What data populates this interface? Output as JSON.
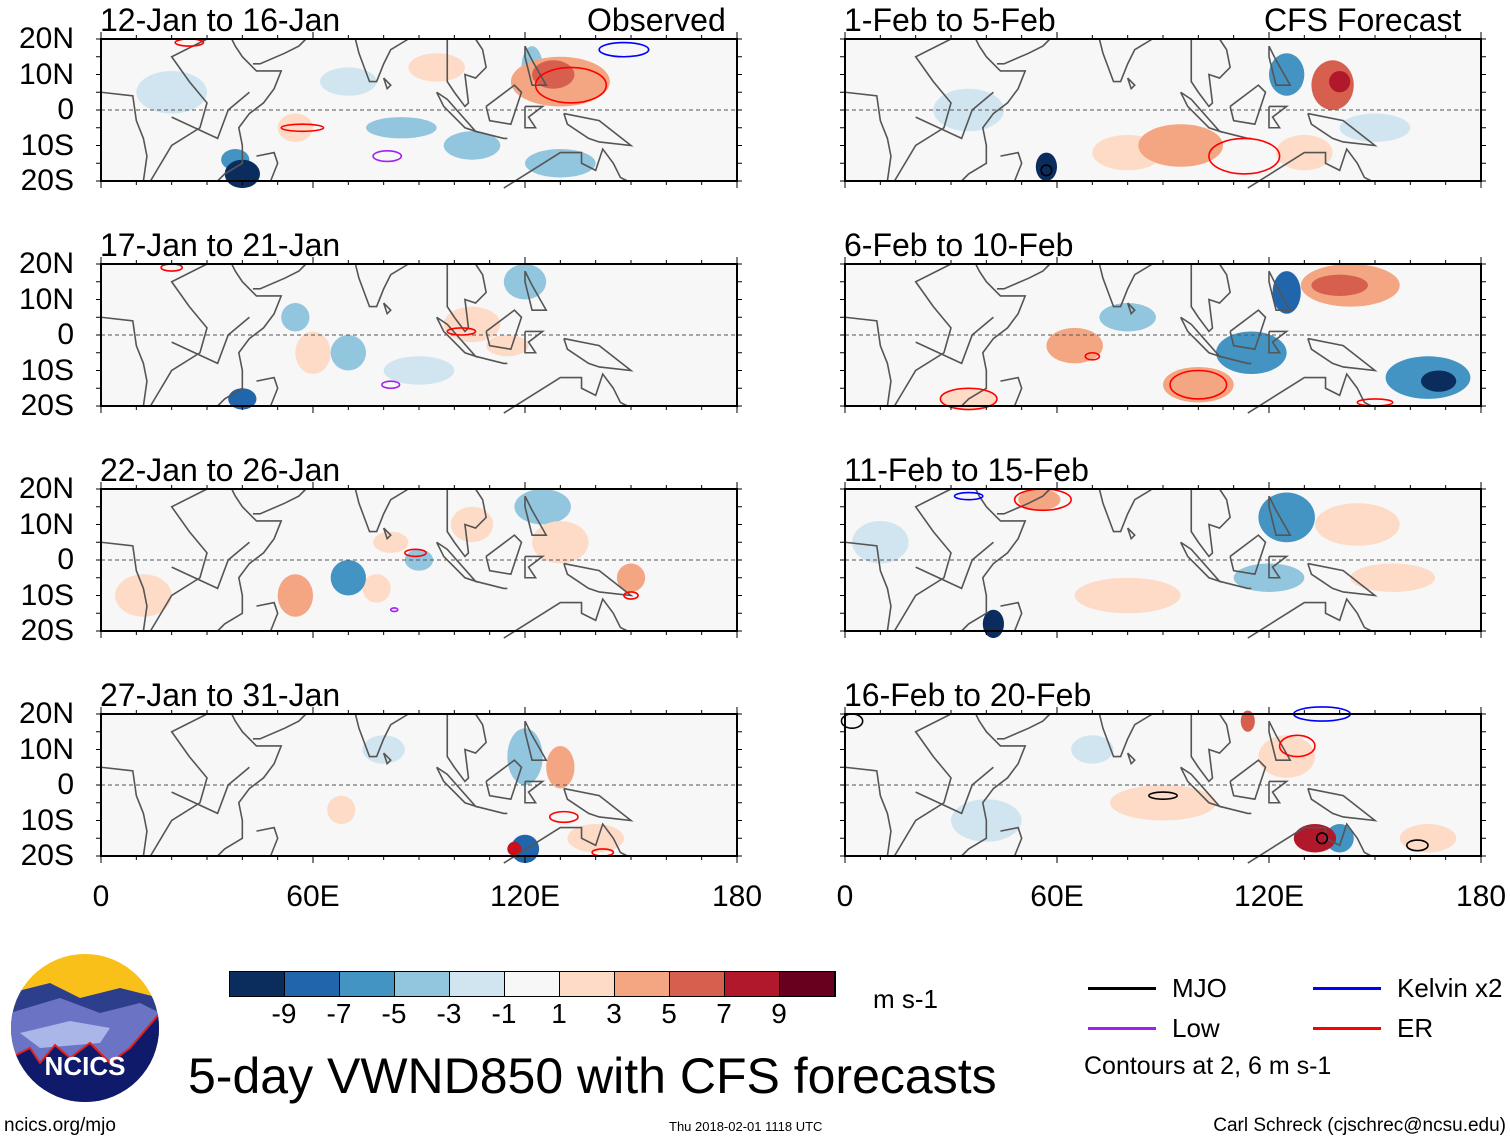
{
  "title": "5-day VWND850 with CFS forecasts",
  "site": "ncics.org/mjo",
  "timestamp": "Thu 2018-02-01 1118 UTC",
  "author": "Carl Schreck (cjschrec@ncsu.edu)",
  "logo_text": "NCICS",
  "column_labels": {
    "observed": "Observed",
    "forecast": "CFS Forecast"
  },
  "units": "m s-1",
  "contour_note": "Contours at 2, 6 m s-1",
  "legend": [
    {
      "label": "MJO",
      "color": "#000000"
    },
    {
      "label": "Kelvin x2",
      "color": "#0000ff"
    },
    {
      "label": "Low",
      "color": "#a020f0"
    },
    {
      "label": "ER",
      "color": "#ff0000"
    }
  ],
  "colorbar": {
    "ticks": [
      "-9",
      "-7",
      "-5",
      "-3",
      "-1",
      "1",
      "3",
      "5",
      "7",
      "9"
    ],
    "colors": [
      "#0b2d5e",
      "#2166ac",
      "#4393c3",
      "#92c5de",
      "#d1e5f0",
      "#f7f7f7",
      "#fddbc7",
      "#f4a582",
      "#d6604d",
      "#b2182b",
      "#67001f"
    ]
  },
  "lat_labels": [
    "20N",
    "10N",
    "0",
    "10S",
    "20S"
  ],
  "lon_labels": [
    "0",
    "60E",
    "120E",
    "180"
  ],
  "chart_data": {
    "type": "heatmap",
    "variable": "850-hPa meridional wind anomaly (m s-1)",
    "xlim": [
      0,
      180
    ],
    "ylim": [
      -20,
      20
    ],
    "panels": [
      {
        "title": "12-Jan to 16-Jan",
        "kind": "observed",
        "anoms": [
          [
            130,
            8,
            14,
            7,
            5
          ],
          [
            128,
            10,
            6,
            4,
            7
          ],
          [
            95,
            12,
            8,
            4,
            3
          ],
          [
            122,
            12,
            3,
            6,
            -3
          ],
          [
            40,
            -18,
            5,
            4,
            -9
          ],
          [
            38,
            -14,
            4,
            3,
            -5
          ],
          [
            55,
            -5,
            5,
            4,
            3
          ],
          [
            85,
            -5,
            10,
            3,
            -3
          ],
          [
            70,
            8,
            8,
            4,
            -1
          ],
          [
            160,
            -5,
            15,
            6,
            1
          ],
          [
            20,
            5,
            10,
            6,
            -1
          ],
          [
            105,
            -10,
            8,
            4,
            -3
          ],
          [
            130,
            -15,
            10,
            4,
            -3
          ],
          [
            150,
            5,
            12,
            6,
            1
          ]
        ],
        "contours": [
          [
            133,
            7,
            10,
            5,
            "ER"
          ],
          [
            57,
            -5,
            6,
            1,
            "ER"
          ],
          [
            81,
            -13,
            4,
            1.5,
            "Low"
          ],
          [
            148,
            17,
            7,
            2,
            "Kelvin"
          ],
          [
            25,
            19,
            4,
            1,
            "ER"
          ]
        ]
      },
      {
        "title": "17-Jan to 21-Jan",
        "kind": "observed",
        "anoms": [
          [
            105,
            3,
            8,
            5,
            3
          ],
          [
            40,
            -18,
            4,
            3,
            -7
          ],
          [
            60,
            -5,
            5,
            6,
            3
          ],
          [
            55,
            5,
            4,
            4,
            -3
          ],
          [
            70,
            -5,
            5,
            5,
            -3
          ],
          [
            120,
            15,
            6,
            5,
            -3
          ],
          [
            115,
            -3,
            6,
            3,
            3
          ],
          [
            150,
            0,
            15,
            8,
            1
          ],
          [
            90,
            -10,
            10,
            4,
            -1
          ],
          [
            20,
            0,
            10,
            8,
            1
          ]
        ],
        "contours": [
          [
            102,
            1,
            4,
            1,
            "ER"
          ],
          [
            82,
            -14,
            2.5,
            1,
            "Low"
          ],
          [
            20,
            19,
            3,
            1,
            "ER"
          ]
        ]
      },
      {
        "title": "22-Jan to 26-Jan",
        "kind": "observed",
        "anoms": [
          [
            82,
            5,
            5,
            3,
            3
          ],
          [
            55,
            -10,
            5,
            6,
            5
          ],
          [
            70,
            -5,
            5,
            5,
            -5
          ],
          [
            78,
            -8,
            4,
            4,
            3
          ],
          [
            90,
            0,
            4,
            3,
            -3
          ],
          [
            125,
            15,
            8,
            5,
            -3
          ],
          [
            105,
            10,
            6,
            5,
            3
          ],
          [
            130,
            5,
            8,
            6,
            3
          ],
          [
            150,
            -5,
            4,
            4,
            5
          ],
          [
            30,
            15,
            10,
            5,
            1
          ],
          [
            160,
            10,
            15,
            6,
            1
          ],
          [
            12,
            -10,
            8,
            6,
            3
          ]
        ],
        "contours": [
          [
            89,
            2,
            3,
            1,
            "ER"
          ],
          [
            83,
            -14,
            1,
            0.5,
            "Low"
          ],
          [
            150,
            -10,
            2,
            1,
            "ER"
          ]
        ]
      },
      {
        "title": "27-Jan to 31-Jan",
        "kind": "observed",
        "anoms": [
          [
            120,
            -18,
            4,
            4,
            -7
          ],
          [
            117,
            -18,
            2,
            2,
            9
          ],
          [
            130,
            5,
            4,
            6,
            5
          ],
          [
            120,
            8,
            5,
            8,
            -3
          ],
          [
            68,
            -7,
            4,
            4,
            3
          ],
          [
            80,
            10,
            6,
            4,
            -1
          ],
          [
            150,
            -5,
            20,
            5,
            1
          ],
          [
            60,
            15,
            8,
            4,
            1
          ],
          [
            140,
            -15,
            8,
            4,
            3
          ],
          [
            30,
            -5,
            10,
            8,
            1
          ]
        ],
        "contours": [
          [
            131,
            -9,
            4,
            1.5,
            "ER"
          ],
          [
            142,
            -19,
            3,
            1,
            "ER"
          ],
          [
            117,
            -18,
            1,
            1,
            "ER"
          ]
        ]
      },
      {
        "title": "1-Feb to 5-Feb",
        "kind": "forecast",
        "anoms": [
          [
            138,
            7,
            6,
            7,
            7
          ],
          [
            140,
            8,
            3,
            3,
            9
          ],
          [
            125,
            10,
            5,
            6,
            -5
          ],
          [
            57,
            -16,
            3,
            4,
            -9
          ],
          [
            80,
            -12,
            10,
            5,
            3
          ],
          [
            95,
            -10,
            12,
            6,
            5
          ],
          [
            130,
            -12,
            8,
            5,
            3
          ],
          [
            150,
            -5,
            10,
            4,
            -1
          ],
          [
            35,
            0,
            10,
            6,
            -1
          ],
          [
            85,
            10,
            10,
            4,
            1
          ],
          [
            15,
            -10,
            8,
            5,
            1
          ]
        ],
        "contours": [
          [
            113,
            -13,
            10,
            5,
            "ER"
          ],
          [
            57,
            -17,
            1.5,
            1.5,
            "MJO"
          ]
        ]
      },
      {
        "title": "6-Feb to 10-Feb",
        "kind": "forecast",
        "anoms": [
          [
            143,
            14,
            14,
            6,
            5
          ],
          [
            140,
            14,
            8,
            3,
            7
          ],
          [
            125,
            12,
            4,
            6,
            -7
          ],
          [
            115,
            -5,
            10,
            6,
            -5
          ],
          [
            165,
            -12,
            12,
            6,
            -5
          ],
          [
            168,
            -13,
            5,
            3,
            -9
          ],
          [
            65,
            -3,
            8,
            5,
            5
          ],
          [
            100,
            -14,
            10,
            5,
            5
          ],
          [
            35,
            -18,
            8,
            3,
            3
          ],
          [
            80,
            5,
            8,
            4,
            -3
          ],
          [
            160,
            5,
            10,
            5,
            1
          ]
        ],
        "contours": [
          [
            100,
            -14,
            8,
            4,
            "ER"
          ],
          [
            35,
            -18,
            8,
            3,
            "ER"
          ],
          [
            70,
            -6,
            2,
            1,
            "ER"
          ],
          [
            150,
            -19,
            5,
            1,
            "ER"
          ]
        ]
      },
      {
        "title": "11-Feb to 15-Feb",
        "kind": "forecast",
        "anoms": [
          [
            125,
            12,
            8,
            7,
            -5
          ],
          [
            120,
            -5,
            10,
            4,
            -3
          ],
          [
            55,
            17,
            6,
            3,
            5
          ],
          [
            42,
            -18,
            3,
            4,
            -9
          ],
          [
            145,
            10,
            12,
            6,
            3
          ],
          [
            80,
            -10,
            15,
            5,
            3
          ],
          [
            155,
            -5,
            12,
            4,
            3
          ],
          [
            100,
            -5,
            10,
            4,
            1
          ],
          [
            10,
            5,
            8,
            6,
            -1
          ],
          [
            90,
            12,
            10,
            4,
            1
          ]
        ],
        "contours": [
          [
            56,
            17,
            8,
            3,
            "ER"
          ],
          [
            35,
            18,
            4,
            1,
            "Kelvin"
          ]
        ]
      },
      {
        "title": "16-Feb to 20-Feb",
        "kind": "forecast",
        "anoms": [
          [
            133,
            -15,
            6,
            4,
            9
          ],
          [
            140,
            -15,
            4,
            4,
            -5
          ],
          [
            90,
            -5,
            15,
            5,
            3
          ],
          [
            70,
            10,
            6,
            4,
            -1
          ],
          [
            114,
            18,
            2,
            3,
            7
          ],
          [
            125,
            8,
            8,
            6,
            3
          ],
          [
            165,
            -15,
            8,
            4,
            3
          ],
          [
            150,
            0,
            15,
            6,
            1
          ],
          [
            40,
            -10,
            10,
            6,
            -1
          ],
          [
            20,
            5,
            10,
            5,
            1
          ]
        ],
        "contours": [
          [
            135,
            -15,
            1.5,
            1.5,
            "MJO"
          ],
          [
            128,
            11,
            5,
            3,
            "ER"
          ],
          [
            135,
            20,
            8,
            2,
            "Kelvin"
          ],
          [
            90,
            -3,
            4,
            1,
            "MJO"
          ],
          [
            162,
            -17,
            3,
            1.5,
            "MJO"
          ],
          [
            2,
            18,
            3,
            2,
            "MJO"
          ]
        ]
      }
    ]
  }
}
